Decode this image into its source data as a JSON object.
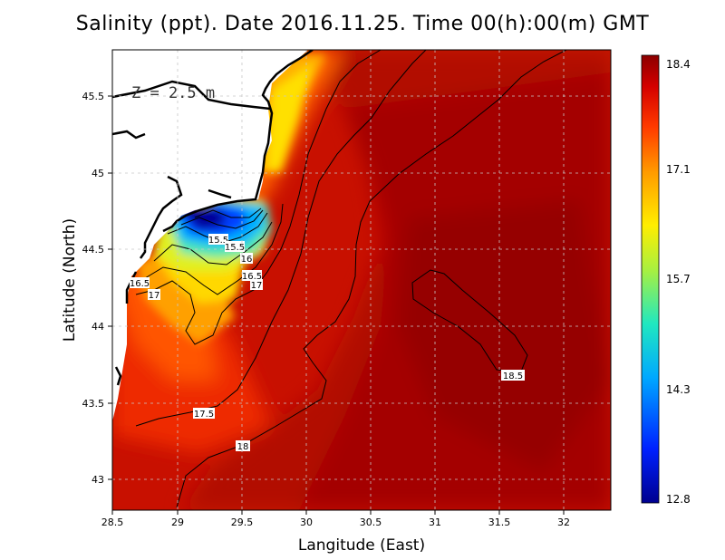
{
  "title": "Salinity (ppt). Date 2016.11.25. Time 00(h):00(m) GMT",
  "depth_label": "Z = 2.5 m",
  "x_axis": {
    "label": "Langitude (East)",
    "range": [
      28.5,
      32.4
    ],
    "ticks": [
      "28.5",
      "29",
      "29.5",
      "30",
      "30.5",
      "31",
      "31.5",
      "32"
    ]
  },
  "y_axis": {
    "label": "Latitude (North)",
    "range": [
      42.8,
      45.8
    ],
    "ticks": [
      "43",
      "43.5",
      "44",
      "44.5",
      "45",
      "45.5"
    ]
  },
  "colorbar": {
    "ticks": [
      "18.4",
      "17.1",
      "15.7",
      "14.3",
      "12.8"
    ],
    "min": 12.8,
    "max": 18.4
  },
  "contour_labels": [
    "15.5",
    "15.5",
    "16",
    "16.5",
    "16.5",
    "17",
    "17",
    "17.5",
    "18",
    "18.5"
  ],
  "colors": {
    "land": "#ffffff",
    "high_salinity": "#9a0000",
    "low_salinity": "#00008f"
  }
}
